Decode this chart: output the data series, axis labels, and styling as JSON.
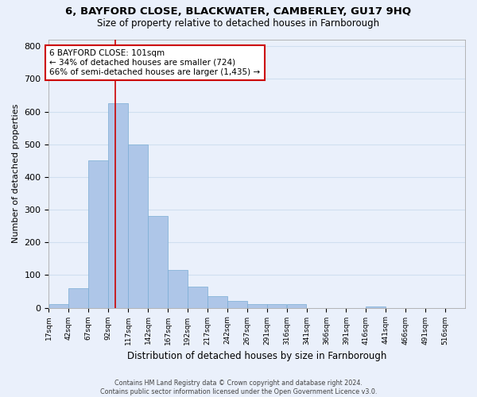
{
  "title": "6, BAYFORD CLOSE, BLACKWATER, CAMBERLEY, GU17 9HQ",
  "subtitle": "Size of property relative to detached houses in Farnborough",
  "xlabel": "Distribution of detached houses by size in Farnborough",
  "ylabel": "Number of detached properties",
  "bar_labels": [
    "17sqm",
    "42sqm",
    "67sqm",
    "92sqm",
    "117sqm",
    "142sqm",
    "167sqm",
    "192sqm",
    "217sqm",
    "242sqm",
    "267sqm",
    "291sqm",
    "316sqm",
    "341sqm",
    "366sqm",
    "391sqm",
    "416sqm",
    "441sqm",
    "466sqm",
    "491sqm",
    "516sqm"
  ],
  "bar_values": [
    10,
    60,
    450,
    625,
    500,
    280,
    115,
    65,
    35,
    20,
    10,
    10,
    10,
    0,
    0,
    0,
    5,
    0,
    0,
    0,
    0
  ],
  "bar_color": "#aec6e8",
  "bar_edge_color": "#7aadd4",
  "grid_color": "#d0dff0",
  "background_color": "#eaf0fb",
  "vline_color": "#cc0000",
  "annotation_title": "6 BAYFORD CLOSE: 101sqm",
  "annotation_line1": "← 34% of detached houses are smaller (724)",
  "annotation_line2": "66% of semi-detached houses are larger (1,435) →",
  "annotation_box_color": "#ffffff",
  "annotation_border_color": "#cc0000",
  "footer1": "Contains HM Land Registry data © Crown copyright and database right 2024.",
  "footer2": "Contains public sector information licensed under the Open Government Licence v3.0.",
  "ylim": [
    0,
    820
  ],
  "bin_width": 25,
  "vline_x": 101
}
